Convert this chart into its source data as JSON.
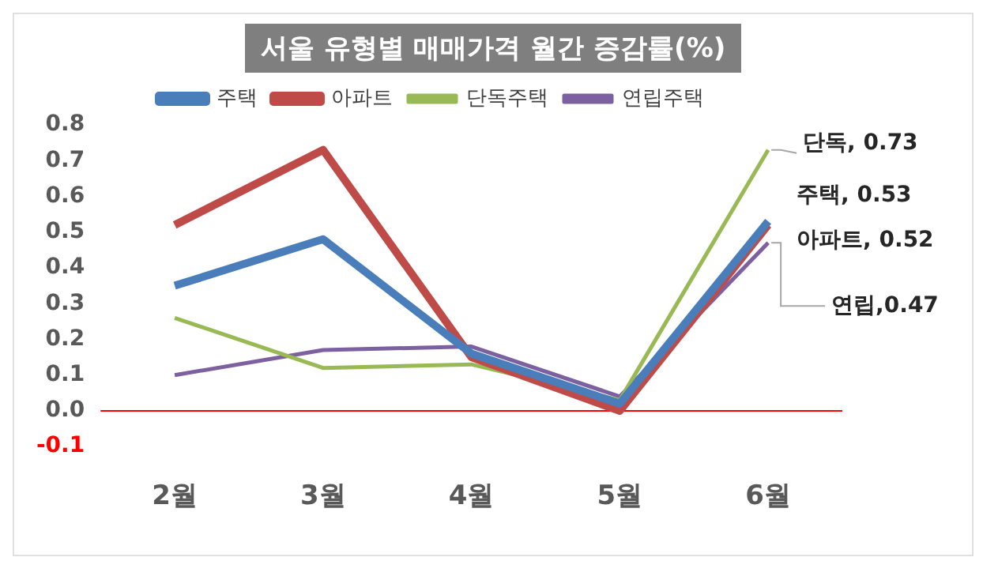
{
  "chart_data": {
    "type": "line",
    "title": "서울 유형별 매매가격 월간 증감률(%)",
    "categories": [
      "2월",
      "3월",
      "4월",
      "5월",
      "6월"
    ],
    "series": [
      {
        "name": "주택",
        "color": "#4a7ebb",
        "values": [
          0.35,
          0.48,
          0.16,
          0.02,
          0.53
        ]
      },
      {
        "name": "아파트",
        "color": "#be4b48",
        "values": [
          0.52,
          0.73,
          0.15,
          0.0,
          0.52
        ]
      },
      {
        "name": "단독주택",
        "color": "#98b954",
        "values": [
          0.26,
          0.12,
          0.13,
          0.03,
          0.73
        ]
      },
      {
        "name": "연립주택",
        "color": "#7d60a0",
        "values": [
          0.1,
          0.17,
          0.18,
          0.04,
          0.47
        ]
      }
    ],
    "ylim": [
      -0.1,
      0.8
    ],
    "yticks": [
      {
        "value": -0.1,
        "label": "-0.1"
      },
      {
        "value": 0,
        "label": "0.0"
      },
      0.1,
      0.2,
      0.3,
      0.4,
      0.5,
      0.6,
      0.7,
      0.8
    ],
    "ref_lines": [
      {
        "axis": "y",
        "value": 0,
        "color": "#ff0000"
      }
    ],
    "annotations": [
      {
        "text": "단독, 0.73",
        "x": "6월",
        "y": 0.73
      },
      {
        "text": "주택, 0.53",
        "x": "6월",
        "y": 0.53
      },
      {
        "text": "아파트, 0.52",
        "x": "6월",
        "y": 0.52
      },
      {
        "text": "연립,0.47",
        "x": "6월",
        "y": 0.47
      }
    ],
    "legend": "top",
    "grid": false,
    "marker": "none",
    "line_style": "solid"
  }
}
